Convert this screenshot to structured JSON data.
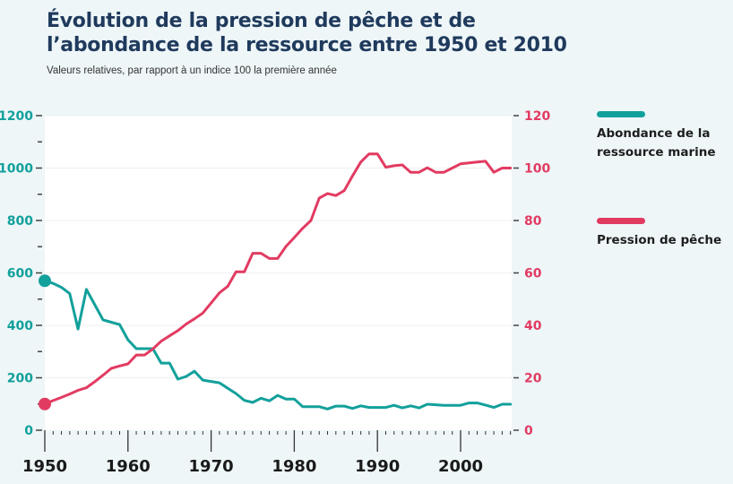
{
  "title": "Évolution de la pression de pêche et de l’abondance de la ressource entre 1950 et 2010",
  "subtitle": "Valeurs relatives, par rapport à un indice 100 la première année",
  "legend": [
    {
      "label": "Abondance de la ressource marine",
      "color": "#12a09b"
    },
    {
      "label": "Pression de pêche",
      "color": "#e23b62"
    }
  ],
  "chart_data": {
    "type": "line",
    "title": "Évolution de la pression de pêche et de l’abondance de la ressource entre 1950 et 2010",
    "subtitle": "Valeurs relatives, par rapport à un indice 100 la première année",
    "xlabel": "",
    "xlim": [
      1950,
      2006
    ],
    "x_ticks": [
      "1950",
      "1960",
      "1970",
      "1980",
      "1990",
      "2000"
    ],
    "y_left": {
      "label": "",
      "ylim": [
        0,
        1200
      ],
      "ticks": [
        "0",
        "200",
        "400",
        "600",
        "800",
        "1000",
        "1200"
      ],
      "color": "#12a09b"
    },
    "y_right": {
      "label": "",
      "ylim": [
        0,
        120
      ],
      "ticks": [
        "0",
        "20",
        "40",
        "60",
        "80",
        "100",
        "120"
      ],
      "color": "#e23b62"
    },
    "grid": true,
    "legend_position": "right",
    "series": [
      {
        "name": "Abondance de la ressource marine",
        "axis": "left",
        "color": "#12a09b",
        "x": [
          1950,
          1951,
          1952,
          1953,
          1954,
          1955,
          1956,
          1957,
          1958,
          1959,
          1960,
          1961,
          1962,
          1963,
          1964,
          1965,
          1966,
          1967,
          1968,
          1969,
          1970,
          1971,
          1972,
          1973,
          1974,
          1975,
          1976,
          1977,
          1978,
          1979,
          1980,
          1981,
          1982,
          1983,
          1984,
          1985,
          1986,
          1987,
          1988,
          1989,
          1990,
          1991,
          1992,
          1993,
          1994,
          1995,
          1996,
          1997,
          1998,
          1999,
          2000,
          2001,
          2002,
          2003,
          2004,
          2005,
          2006
        ],
        "values": [
          570,
          560,
          545,
          521,
          386,
          537,
          479,
          421,
          412,
          403,
          345,
          311,
          311,
          311,
          256,
          256,
          195,
          205,
          225,
          191,
          186,
          181,
          160,
          140,
          114,
          106,
          122,
          112,
          133,
          119,
          119,
          90,
          90,
          90,
          81,
          92,
          92,
          83,
          93,
          87,
          87,
          87,
          95,
          85,
          93,
          85,
          99,
          97,
          95,
          95,
          95,
          104,
          104,
          96,
          87,
          99,
          99
        ]
      },
      {
        "name": "Pression de pêche",
        "axis": "right",
        "color": "#e23b62",
        "x": [
          1950,
          1951,
          1952,
          1953,
          1954,
          1955,
          1956,
          1957,
          1958,
          1959,
          1960,
          1961,
          1962,
          1963,
          1964,
          1965,
          1966,
          1967,
          1968,
          1969,
          1970,
          1971,
          1972,
          1973,
          1974,
          1975,
          1976,
          1977,
          1978,
          1979,
          1980,
          1981,
          1982,
          1983,
          1984,
          1985,
          1986,
          1987,
          1988,
          1989,
          1990,
          1991,
          1992,
          1993,
          1994,
          1995,
          1996,
          1997,
          1998,
          1999,
          2000,
          2001,
          2002,
          2003,
          2004,
          2005,
          2006
        ],
        "values": [
          10,
          11.3,
          12.5,
          13.8,
          15.2,
          16.2,
          18.5,
          21,
          23.6,
          24.5,
          25.3,
          28.7,
          28.7,
          31,
          34,
          36,
          38,
          40.5,
          42.5,
          44.7,
          48.5,
          52.4,
          54.9,
          60.4,
          60.4,
          67.5,
          67.5,
          65.5,
          65.5,
          70.1,
          73.5,
          77,
          80,
          88.5,
          90.3,
          89.5,
          91.4,
          97,
          102.3,
          105.4,
          105.4,
          100.3,
          100.9,
          101.2,
          98.4,
          98.4,
          100.1,
          98.4,
          98.4,
          100,
          101.6,
          102,
          102.3,
          102.6,
          98.4,
          100,
          100
        ]
      }
    ]
  }
}
